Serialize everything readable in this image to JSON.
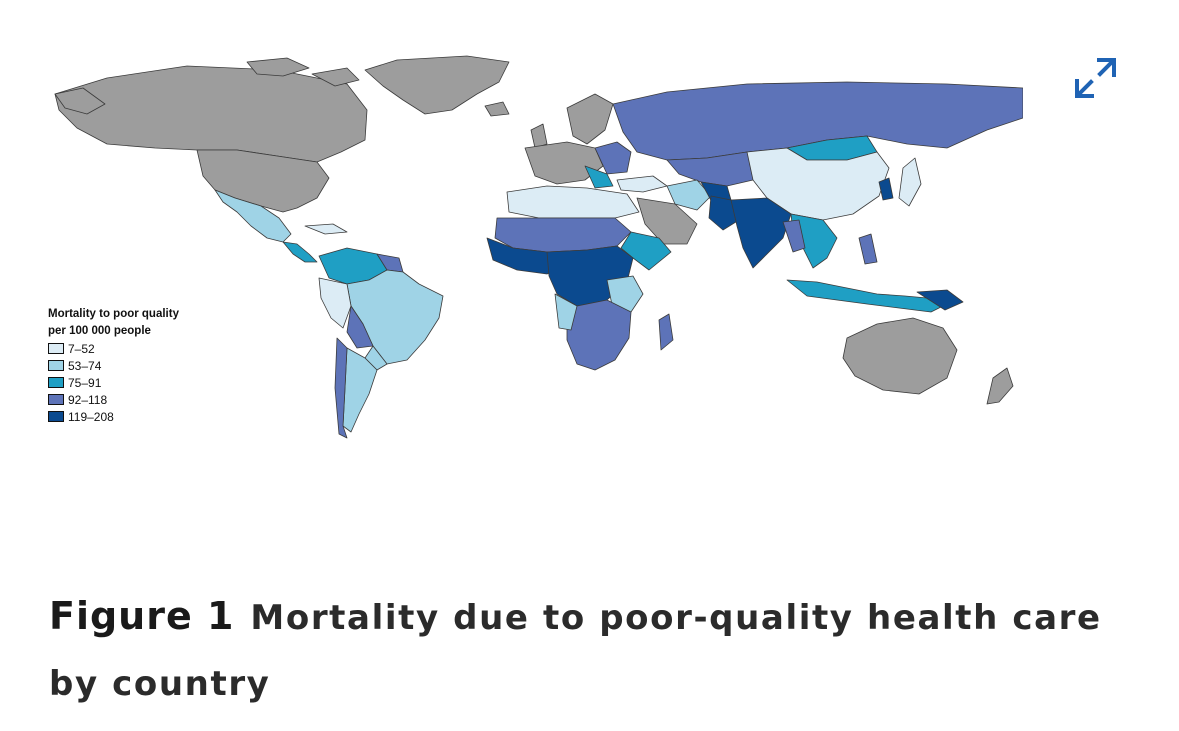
{
  "figure": {
    "label": "Figure 1",
    "caption": "Mortality due to poor-quality health care by country"
  },
  "legend": {
    "title_line1": "Mortality to poor quality",
    "title_line2": "per 100 000 people",
    "items": [
      {
        "label": "7–52",
        "color": "#dcecf5"
      },
      {
        "label": "53–74",
        "color": "#9fd3e6"
      },
      {
        "label": "75–91",
        "color": "#1f9fc4"
      },
      {
        "label": "92–118",
        "color": "#5d73b8"
      },
      {
        "label": "119–208",
        "color": "#0b4a8f"
      }
    ],
    "no_data_color": "#9d9d9d"
  },
  "controls": {
    "expand_icon": "expand-diagonal-arrows-icon",
    "accent": "#1f63b4"
  }
}
